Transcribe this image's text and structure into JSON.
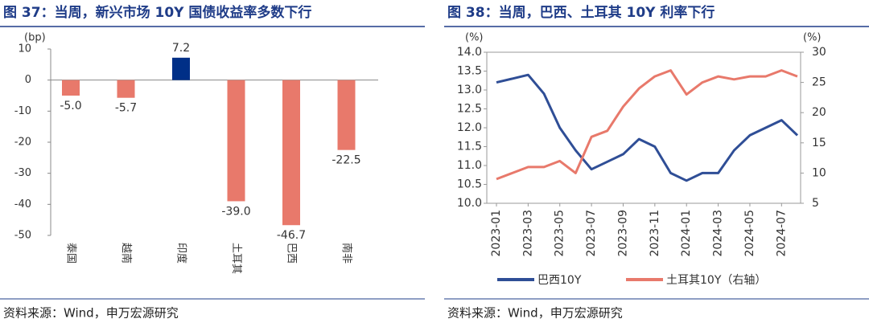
{
  "chart_data": [
    {
      "type": "bar",
      "title": "图 37：当周，新兴市场 10Y 国债收益率多数下行",
      "y_unit": "(bp)",
      "categories": [
        "泰国",
        "越南",
        "印度",
        "土耳其",
        "巴西",
        "南非"
      ],
      "values": [
        -5.0,
        -5.7,
        7.2,
        -39.0,
        -46.7,
        -22.5
      ],
      "value_labels": [
        "-5.0",
        "-5.7",
        "7.2",
        "-39.0",
        "-46.7",
        "-22.5"
      ],
      "colors": [
        "#e8796b",
        "#e8796b",
        "#002f87",
        "#e8796b",
        "#e8796b",
        "#e8796b"
      ],
      "ylim": [
        -50,
        10
      ],
      "yticks": [
        -50,
        -40,
        -30,
        -20,
        -10,
        0,
        10
      ],
      "source": "资料来源：Wind，申万宏源研究"
    },
    {
      "type": "line",
      "title": "图 38：当周，巴西、土耳其 10Y 利率下行",
      "y_unit": "(%)",
      "y2_unit": "(%)",
      "x": [
        "2023-01",
        "2023-02",
        "2023-03",
        "2023-04",
        "2023-05",
        "2023-06",
        "2023-07",
        "2023-08",
        "2023-09",
        "2023-10",
        "2023-11",
        "2023-12",
        "2024-01",
        "2024-02",
        "2024-03",
        "2024-04",
        "2024-05",
        "2024-06",
        "2024-07",
        "2024-08"
      ],
      "xticks": [
        "2023-01",
        "2023-03",
        "2023-05",
        "2023-07",
        "2023-09",
        "2023-11",
        "2024-01",
        "2024-03",
        "2024-05",
        "2024-07"
      ],
      "series": [
        {
          "name": "巴西10Y",
          "color": "#2f4e96",
          "values": [
            13.2,
            13.3,
            13.4,
            12.9,
            12.0,
            11.4,
            10.9,
            11.1,
            11.3,
            11.7,
            11.5,
            10.8,
            10.6,
            10.8,
            10.8,
            11.4,
            11.8,
            12.0,
            12.2,
            11.8
          ]
        },
        {
          "name": "土耳其10Y（右轴）",
          "color": "#e8796b",
          "axis": "y2",
          "values": [
            9,
            10,
            11,
            11,
            12,
            10,
            16,
            17,
            21,
            24,
            26,
            27,
            23,
            25,
            26,
            25.5,
            26,
            26,
            27,
            26
          ]
        }
      ],
      "ylim": [
        10,
        14
      ],
      "yticks": [
        {
          "value": 10,
          "label": "10.0"
        },
        {
          "value": 10.5,
          "label": "10.5"
        },
        {
          "value": 11,
          "label": "11.0"
        },
        {
          "value": 11.5,
          "label": "11.5"
        },
        {
          "value": 12,
          "label": "12.0"
        },
        {
          "value": 12.5,
          "label": "12.5"
        },
        {
          "value": 13,
          "label": "13.0"
        },
        {
          "value": 13.5,
          "label": "13.5"
        },
        {
          "value": 14,
          "label": "14.0"
        }
      ],
      "y2lim": [
        5,
        30
      ],
      "y2ticks": [
        5,
        10,
        15,
        20,
        25,
        30
      ],
      "source": "资料来源：Wind，申万宏源研究"
    }
  ]
}
